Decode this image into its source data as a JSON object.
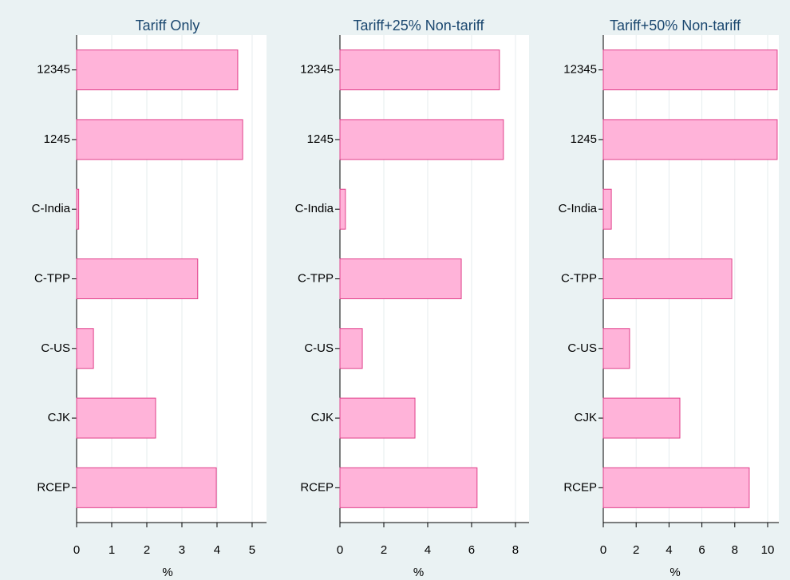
{
  "chart_data": [
    {
      "type": "barh",
      "title": "Tariff Only",
      "x_label": "%",
      "categories": [
        "12345",
        "1245",
        "C-India",
        "C-TPP",
        "C-US",
        "CJK",
        "RCEP"
      ],
      "values": [
        4.59,
        4.73,
        0.06,
        3.45,
        0.48,
        2.25,
        3.98
      ],
      "color": "#ffb3d9",
      "edge_color": "#e0408a",
      "xlim": [
        0,
        5.41
      ],
      "xticks": [
        0,
        1,
        2,
        3,
        4,
        5
      ],
      "grid": true
    },
    {
      "type": "barh",
      "title": "Tariff+25% Non-tariff",
      "x_label": "%",
      "categories": [
        "12345",
        "1245",
        "C-India",
        "C-TPP",
        "C-US",
        "CJK",
        "RCEP"
      ],
      "values": [
        7.27,
        7.45,
        0.25,
        5.53,
        1.02,
        3.42,
        6.25
      ],
      "color": "#ffb3d9",
      "edge_color": "#e0408a",
      "xlim": [
        0,
        8.62
      ],
      "xticks": [
        0,
        2,
        4,
        6,
        8
      ],
      "grid": true
    },
    {
      "type": "barh",
      "title": "Tariff+50% Non-tariff",
      "x_label": "%",
      "categories": [
        "12345",
        "1245",
        "C-India",
        "C-TPP",
        "C-US",
        "CJK",
        "RCEP"
      ],
      "values": [
        10.58,
        10.58,
        0.49,
        7.82,
        1.6,
        4.66,
        8.88
      ],
      "color": "#ffb3d9",
      "edge_color": "#e0408a",
      "xlim": [
        0,
        10.68
      ],
      "xticks": [
        0,
        2,
        4,
        6,
        8,
        10
      ],
      "grid": true
    }
  ]
}
